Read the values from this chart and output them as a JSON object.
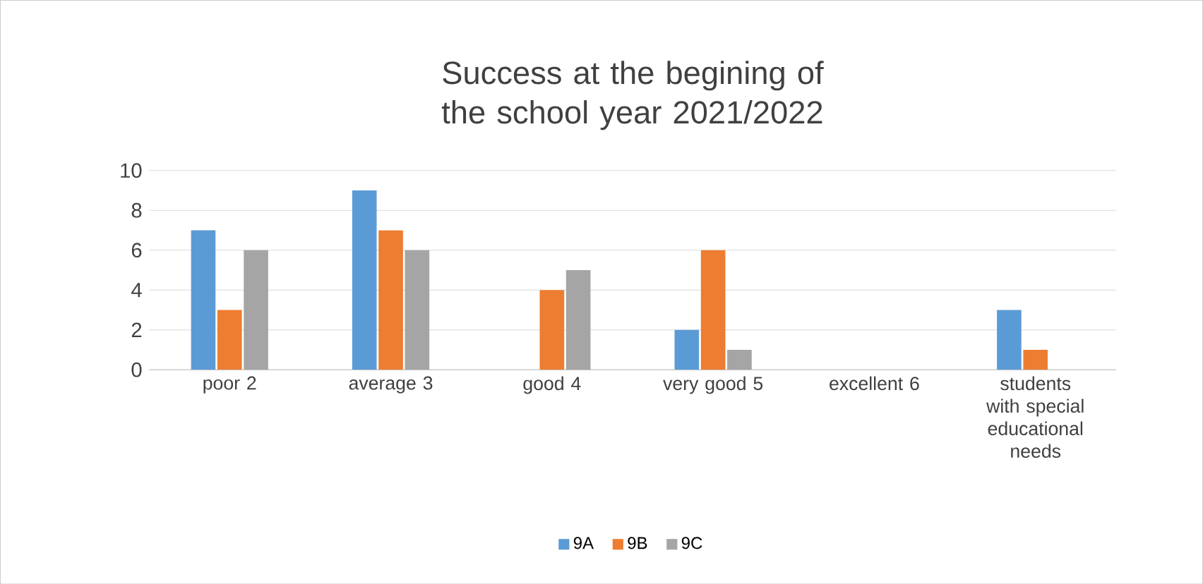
{
  "chart_data": {
    "type": "bar",
    "title": "Success at the begining of the school year 2021/2022",
    "categories": [
      "poor 2",
      "average 3",
      "good 4",
      "very good 5",
      "excellent 6",
      "students with special educational needs"
    ],
    "series": [
      {
        "name": "9A",
        "color": "#5b9bd5",
        "values": [
          7,
          9,
          0,
          2,
          0,
          3
        ]
      },
      {
        "name": "9B",
        "color": "#ed7d31",
        "values": [
          3,
          7,
          4,
          6,
          0,
          1
        ]
      },
      {
        "name": "9C",
        "color": "#a5a5a5",
        "values": [
          6,
          6,
          5,
          1,
          0,
          0
        ]
      }
    ],
    "ylim": [
      0,
      10
    ],
    "yticks": [
      0,
      2,
      4,
      6,
      8,
      10
    ],
    "grid": "y",
    "legend": "bottom"
  }
}
